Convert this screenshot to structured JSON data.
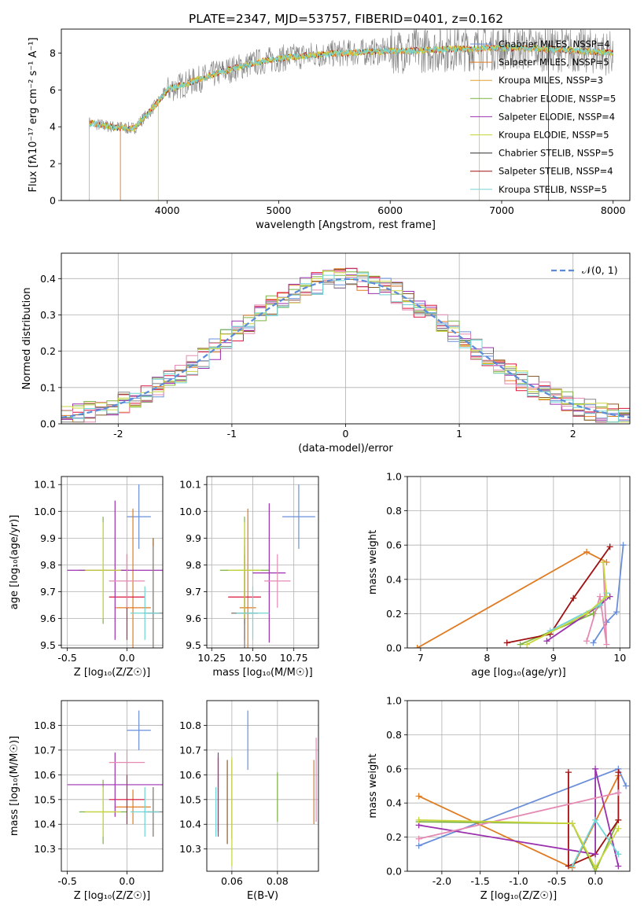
{
  "figure": {
    "title": "PLATE=2347, MJD=53757, FIBERID=0401, z=0.162",
    "colors": [
      "#6a8fd8",
      "#e07b22",
      "#7cb342",
      "#dc143c",
      "#9b30ae",
      "#8b5a2b",
      "#e589b3",
      "#888888",
      "#c8d63c",
      "#6fd4d4"
    ]
  },
  "chart_data": [
    {
      "id": "spectrum",
      "type": "line",
      "xlabel": "wavelength [Angstrom, rest frame]",
      "ylabel": "Flux [f$_\\lambda$10$^{-17}$ erg cm$^{-2}$ s$^{-1}$ A$^{-1}$]",
      "ylabel_display": "Flux [fλ10⁻¹⁷ erg cm⁻² s⁻¹ A⁻¹]",
      "xlim": [
        3050,
        8150
      ],
      "ylim": [
        0,
        9.3
      ],
      "xticks": [
        4000,
        5000,
        6000,
        7000,
        8000
      ],
      "yticks": [
        0,
        2,
        4,
        6,
        8
      ],
      "legend": [
        "Chabrier MILES, N$_{SSP}$=4",
        "Salpeter MILES, N$_{SSP}$=5",
        "Kroupa MILES, N$_{SSP}$=3",
        "Chabrier ELODIE, N$_{SSP}$=5",
        "Salpeter ELODIE, N$_{SSP}$=4",
        "Kroupa ELODIE, N$_{SSP}$=5",
        "Chabrier STELIB, N$_{SSP}$=5",
        "Salpeter STELIB, N$_{SSP}$=4",
        "Kroupa STELIB, N$_{SSP}$=5"
      ],
      "legend_display": [
        "Chabrier MILES, NSSP=4",
        "Salpeter MILES, NSSP=5",
        "Kroupa MILES, NSSP=3",
        "Chabrier ELODIE, NSSP=5",
        "Salpeter ELODIE, NSSP=4",
        "Kroupa ELODIE, NSSP=5",
        "Chabrier STELIB, NSSP=5",
        "Salpeter STELIB, NSSP=4",
        "Kroupa STELIB, NSSP=5"
      ],
      "legend_colors": [
        "#6a8fd8",
        "#e07b22",
        "#e0a030",
        "#7cb342",
        "#9b30ae",
        "#c8d63c",
        "#333333",
        "#a01010",
        "#7ad4d4"
      ],
      "legend_location": "right",
      "continuum": {
        "x": [
          3300,
          3500,
          3700,
          3900,
          4000,
          4200,
          4500,
          4800,
          5000,
          5300,
          5600,
          6000,
          6500,
          7000,
          7500,
          8000
        ],
        "y": [
          4.2,
          4.0,
          3.9,
          5.2,
          6.0,
          6.4,
          7.0,
          7.5,
          7.7,
          7.9,
          8.0,
          8.1,
          8.2,
          8.3,
          8.2,
          8.0
        ]
      }
    },
    {
      "id": "residuals",
      "type": "step",
      "xlabel": "(data-model)/error",
      "ylabel": "Normed distribution",
      "xlim": [
        -2.5,
        2.5
      ],
      "ylim": [
        0,
        0.47
      ],
      "xticks": [
        -2,
        -1,
        0,
        1,
        2
      ],
      "yticks": [
        0.0,
        0.1,
        0.2,
        0.3,
        0.4
      ],
      "legend": [
        "$\\mathcal{N}(0,1)$"
      ],
      "legend_display": "𝒩(0, 1)",
      "legend_location": "upper right",
      "grid": true
    },
    {
      "id": "age-vs-z",
      "type": "errorbar",
      "xlabel": "Z [log$_{10}$(Z/Z$_\\odot$)]",
      "xlabel_display": "Z [log₁₀(Z/Z☉)]",
      "ylabel": "age  [log$_{10}$(age/yr)]",
      "ylabel_display": "age  [log₁₀(age/yr)]",
      "xlim": [
        -0.55,
        0.3
      ],
      "ylim": [
        9.49,
        10.13
      ],
      "xticks": [
        -0.5,
        0.0
      ],
      "yticks": [
        9.5,
        9.6,
        9.7,
        9.8,
        9.9,
        10.0,
        10.1
      ],
      "points": [
        {
          "x": 0.1,
          "y": 9.98,
          "xerr": 0.1,
          "yerr": 0.12
        },
        {
          "x": 0.05,
          "y": 9.64,
          "xerr": 0.15,
          "yerr": 0.37
        },
        {
          "x": -0.2,
          "y": 9.78,
          "xerr": 0.2,
          "yerr": 0.2
        },
        {
          "x": 0.0,
          "y": 9.68,
          "xerr": 0.15,
          "yerr": 0.16
        },
        {
          "x": -0.1,
          "y": 9.78,
          "xerr": 0.4,
          "yerr": 0.26
        },
        {
          "x": 0.22,
          "y": 9.62,
          "xerr": 0.05,
          "yerr": 0.28
        },
        {
          "x": 0.0,
          "y": 9.74,
          "xerr": 0.15,
          "yerr": 0.1
        },
        {
          "x": 0.22,
          "y": 9.62,
          "xerr": 0.08,
          "yerr": 0.25
        },
        {
          "x": -0.2,
          "y": 9.78,
          "xerr": 0.15,
          "yerr": 0.18
        },
        {
          "x": 0.15,
          "y": 9.62,
          "xerr": 0.12,
          "yerr": 0.1
        }
      ]
    },
    {
      "id": "age-vs-mass",
      "type": "errorbar",
      "xlabel": "mass [log$_{10}$(M/M$_\\odot$)]",
      "xlabel_display": "mass [log₁₀(M/M☉)]",
      "xlim": [
        10.22,
        10.9
      ],
      "ylim": [
        9.49,
        10.13
      ],
      "xticks": [
        10.25,
        10.5,
        10.75
      ],
      "xtick_labels": [
        "10.25",
        "10.50",
        "10.75"
      ],
      "yticks": [
        9.5,
        9.6,
        9.7,
        9.8,
        9.9,
        10.0,
        10.1
      ],
      "points": [
        {
          "x": 10.78,
          "y": 9.98,
          "xerr": 0.1,
          "yerr": 0.12
        },
        {
          "x": 10.47,
          "y": 9.64,
          "xerr": 0.05,
          "yerr": 0.37
        },
        {
          "x": 10.45,
          "y": 9.78,
          "xerr": 0.15,
          "yerr": 0.2
        },
        {
          "x": 10.45,
          "y": 9.68,
          "xerr": 0.1,
          "yerr": 0.16
        },
        {
          "x": 10.6,
          "y": 9.77,
          "xerr": 0.1,
          "yerr": 0.26
        },
        {
          "x": 10.45,
          "y": 9.62,
          "xerr": 0.08,
          "yerr": 0.28
        },
        {
          "x": 10.65,
          "y": 9.74,
          "xerr": 0.08,
          "yerr": 0.1
        },
        {
          "x": 10.45,
          "y": 9.62,
          "xerr": 0.08,
          "yerr": 0.25
        },
        {
          "x": 10.45,
          "y": 9.78,
          "xerr": 0.1,
          "yerr": 0.18
        },
        {
          "x": 10.5,
          "y": 9.62,
          "xerr": 0.1,
          "yerr": 0.1
        }
      ]
    },
    {
      "id": "weight-vs-age",
      "type": "line",
      "xlabel": "age  [log$_{10}$(age/yr)]",
      "xlabel_display": "age  [log₁₀(age/yr)]",
      "ylabel": "mass weight",
      "xlim": [
        6.8,
        10.15
      ],
      "ylim": [
        0,
        1.0
      ],
      "xticks": [
        7,
        8,
        9,
        10
      ],
      "yticks": [
        0.0,
        0.2,
        0.4,
        0.6,
        0.8,
        1.0
      ],
      "series": [
        {
          "x": [
            9.6,
            9.8,
            9.95,
            10.05
          ],
          "y": [
            0.03,
            0.15,
            0.21,
            0.6
          ]
        },
        {
          "x": [
            6.95,
            9.5,
            9.8
          ],
          "y": [
            0.0,
            0.56,
            0.5
          ]
        },
        {
          "x": [
            8.5,
            9.6,
            9.8
          ],
          "y": [
            0.02,
            0.2,
            0.3
          ]
        },
        {
          "x": [
            8.3,
            8.95,
            9.3,
            9.85
          ],
          "y": [
            0.03,
            0.08,
            0.29,
            0.59
          ]
        },
        {
          "x": [
            8.9,
            9.7,
            9.85
          ],
          "y": [
            0.04,
            0.25,
            0.3
          ]
        },
        {
          "x": [
            9.5,
            9.7,
            9.8,
            9.75
          ],
          "y": [
            0.04,
            0.3,
            0.02,
            0.5
          ]
        },
        {
          "x": [
            8.95,
            9.7,
            9.8
          ],
          "y": [
            0.1,
            0.25,
            0.32
          ]
        },
        {
          "x": [
            8.6,
            9.5,
            9.8,
            9.75
          ],
          "y": [
            0.02,
            0.2,
            0.3,
            0.5
          ]
        }
      ]
    },
    {
      "id": "mass-vs-z",
      "type": "errorbar",
      "xlabel": "Z [log$_{10}$(Z/Z$_\\odot$)]",
      "xlabel_display": "Z [log₁₀(Z/Z☉)]",
      "ylabel": "mass [log$_{10}$(M/M$_\\odot$)]",
      "ylabel_display": "mass [log₁₀(M/M☉)]",
      "xlim": [
        -0.55,
        0.3
      ],
      "ylim": [
        10.21,
        10.9
      ],
      "xticks": [
        -0.5,
        0.0
      ],
      "yticks": [
        10.3,
        10.4,
        10.5,
        10.6,
        10.7,
        10.8
      ],
      "points": [
        {
          "x": 0.1,
          "y": 10.78,
          "xerr": 0.1,
          "yerr": 0.08
        },
        {
          "x": 0.05,
          "y": 10.47,
          "xerr": 0.15,
          "yerr": 0.07
        },
        {
          "x": -0.2,
          "y": 10.45,
          "xerr": 0.2,
          "yerr": 0.13
        },
        {
          "x": 0.0,
          "y": 10.5,
          "xerr": 0.15,
          "yerr": 0.1
        },
        {
          "x": -0.1,
          "y": 10.56,
          "xerr": 0.4,
          "yerr": 0.13
        },
        {
          "x": 0.22,
          "y": 10.45,
          "xerr": 0.05,
          "yerr": 0.1
        },
        {
          "x": 0.0,
          "y": 10.65,
          "xerr": 0.15,
          "yerr": 0.05
        },
        {
          "x": 0.22,
          "y": 10.45,
          "xerr": 0.08,
          "yerr": 0.1
        },
        {
          "x": -0.2,
          "y": 10.45,
          "xerr": 0.15,
          "yerr": 0.1
        },
        {
          "x": 0.15,
          "y": 10.45,
          "xerr": 0.12,
          "yerr": 0.1
        }
      ]
    },
    {
      "id": "mass-vs-ebv",
      "type": "errorbar",
      "xlabel": "E(B-V)",
      "xlim": [
        0.049,
        0.098
      ],
      "ylim": [
        10.21,
        10.9
      ],
      "xticks": [
        0.06,
        0.08
      ],
      "yticks": [
        10.3,
        10.4,
        10.5,
        10.6,
        10.7,
        10.8
      ],
      "points": [
        {
          "x": 0.067,
          "y": 10.74,
          "yerr": 0.12
        },
        {
          "x": 0.096,
          "y": 10.53,
          "yerr": 0.13
        },
        {
          "x": 0.08,
          "y": 10.51,
          "yerr": 0.1
        },
        {
          "x": 0.054,
          "y": 10.52,
          "yerr": 0.15
        },
        {
          "x": 0.054,
          "y": 10.52,
          "yerr": 0.17
        },
        {
          "x": 0.058,
          "y": 10.49,
          "yerr": 0.17
        },
        {
          "x": 0.097,
          "y": 10.58,
          "yerr": 0.17
        },
        {
          "x": 0.06,
          "y": 10.5,
          "yerr": 0.16
        },
        {
          "x": 0.06,
          "y": 10.45,
          "yerr": 0.22
        },
        {
          "x": 0.053,
          "y": 10.45,
          "yerr": 0.1
        }
      ]
    },
    {
      "id": "weight-vs-z",
      "type": "line",
      "xlabel": "Z [log$_{10}$(Z/Z$_\\odot$)]",
      "xlabel_display": "Z [log₁₀(Z/Z☉)]",
      "ylabel": "mass weight",
      "xlim": [
        -2.45,
        0.45
      ],
      "ylim": [
        0,
        1.0
      ],
      "xticks": [
        -2.0,
        -1.5,
        -1.0,
        -0.5,
        0.0
      ],
      "yticks": [
        0.0,
        0.2,
        0.4,
        0.6,
        0.8,
        1.0
      ],
      "series": [
        {
          "x": [
            -2.3,
            0.3,
            0.4
          ],
          "y": [
            0.15,
            0.6,
            0.5
          ]
        },
        {
          "x": [
            -2.3,
            -0.3,
            0.3
          ],
          "y": [
            0.44,
            0.02,
            0.56
          ]
        },
        {
          "x": [
            -2.3,
            -0.3,
            0.0,
            0.3
          ],
          "y": [
            0.29,
            0.28,
            0.0,
            0.3
          ]
        },
        {
          "x": [
            -0.35,
            -0.35,
            0.0,
            0.3,
            0.3
          ],
          "y": [
            0.58,
            0.03,
            0.1,
            0.3,
            0.58
          ]
        },
        {
          "x": [
            -2.3,
            0.0,
            0.0,
            0.3
          ],
          "y": [
            0.27,
            0.1,
            0.6,
            0.03
          ]
        },
        {
          "x": [
            -2.3,
            0.3
          ],
          "y": [
            0.19,
            0.46
          ]
        },
        {
          "x": [
            -0.3,
            0.0,
            0.3
          ],
          "y": [
            0.03,
            0.3,
            0.1
          ]
        },
        {
          "x": [
            -2.3,
            -0.3,
            0.0,
            0.3
          ],
          "y": [
            0.3,
            0.28,
            0.02,
            0.25
          ]
        }
      ]
    }
  ]
}
